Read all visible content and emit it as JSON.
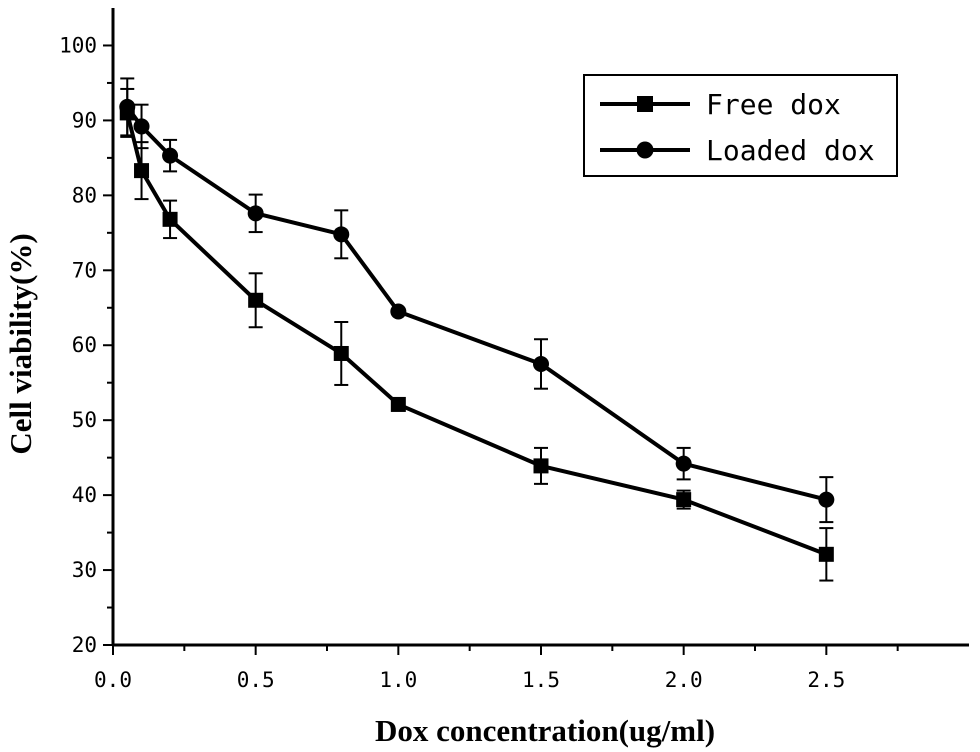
{
  "chart_data": {
    "type": "line",
    "xlabel": "Dox concentration(ug/ml)",
    "ylabel": "Cell viability(%)",
    "xlim": [
      0.0,
      3.0
    ],
    "ylim": [
      20,
      105
    ],
    "x_ticks": [
      "0.0",
      "0.5",
      "1.0",
      "1.5",
      "2.0",
      "2.5"
    ],
    "x_tick_values": [
      0.0,
      0.5,
      1.0,
      1.5,
      2.0,
      2.5
    ],
    "y_ticks": [
      "20",
      "30",
      "40",
      "50",
      "60",
      "70",
      "80",
      "90",
      "100"
    ],
    "y_tick_values": [
      20,
      30,
      40,
      50,
      60,
      70,
      80,
      90,
      100
    ],
    "grid": false,
    "legend_position": "top-right",
    "series": [
      {
        "name": "Free dox",
        "marker": "square",
        "color": "#000000",
        "x": [
          0.05,
          0.1,
          0.2,
          0.5,
          0.8,
          1.0,
          1.5,
          2.0,
          2.5
        ],
        "y": [
          91.0,
          83.3,
          76.8,
          66.0,
          58.9,
          52.1,
          43.9,
          39.4,
          32.1
        ],
        "err": [
          3.2,
          3.8,
          2.5,
          3.6,
          4.2,
          0.0,
          2.4,
          1.2,
          3.5
        ]
      },
      {
        "name": "Loaded dox",
        "marker": "circle",
        "color": "#000000",
        "x": [
          0.05,
          0.1,
          0.2,
          0.5,
          0.8,
          1.0,
          1.5,
          2.0,
          2.5
        ],
        "y": [
          91.8,
          89.2,
          85.3,
          77.6,
          74.8,
          64.5,
          57.5,
          44.2,
          39.4
        ],
        "err": [
          3.8,
          2.9,
          2.1,
          2.5,
          3.2,
          0.0,
          3.3,
          2.1,
          3.0
        ]
      }
    ]
  }
}
